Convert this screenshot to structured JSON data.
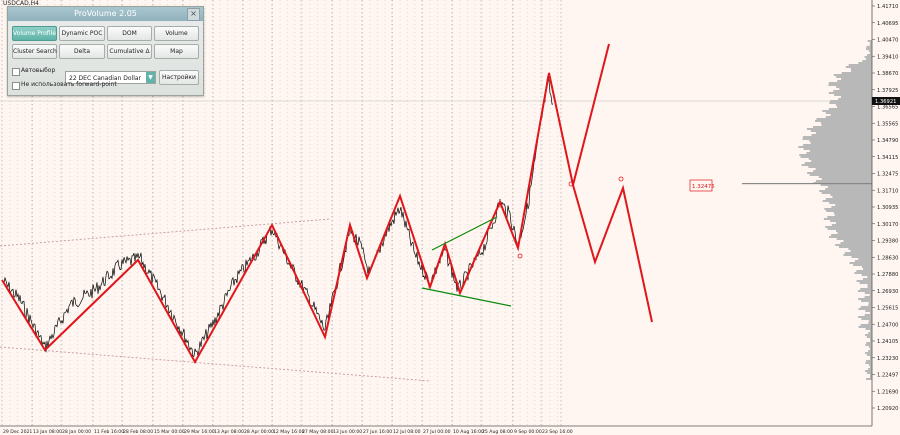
{
  "symbol": "USDCAD,H4",
  "panel": {
    "title": "ProVolume 2.05",
    "close_label": "×",
    "buttons": [
      "Volume Profile",
      "Dynamic POC",
      "DOM",
      "Volume",
      "Cluster Search",
      "Delta",
      "Cumulative Δ",
      "Map"
    ],
    "auto_select_label": "Автовыбор",
    "instrument": "22 DEC Canadian Dollar",
    "settings_label": "Настройки",
    "forward_point_label": "Не использовать forward-point"
  },
  "price_scale": [
    "1.41710",
    "1.40695",
    "1.40470",
    "1.39410",
    "1.38670",
    "1.37925",
    "1.36565",
    "1.35565",
    "1.34790",
    "1.34115",
    "1.32475",
    "1.31710",
    "1.30935",
    "1.30170",
    "1.29380",
    "1.28630",
    "1.27880",
    "1.26930",
    "1.25615",
    "1.24700",
    "1.24105",
    "1.23230",
    "1.22497",
    "1.21690",
    "1.20920"
  ],
  "current_price": "1.36921",
  "time_scale": [
    "29 Dec 2021",
    "13 Jan 08:00",
    "28 Jan 00:00",
    "11 Feb 16:00",
    "28 Feb 08:00",
    "15 Mar 00:00",
    "29 Mar 16:00",
    "13 Apr 08:00",
    "28 Apr 00:00",
    "12 May 16:00",
    "27 May 08:00",
    "13 Jun 00:00",
    "27 Jun 16:00",
    "12 Jul 08:00",
    "27 Jul 00:00",
    "10 Aug 16:00",
    "25 Aug 08:00",
    "9 Sep 00:00",
    "23 Sep 16:00"
  ],
  "level_label": "1.32475",
  "colors": {
    "zigzag": "#e0161b",
    "channel": "#0a8a0a",
    "profile": "#b8b8b8",
    "dashed": "#c39a9a"
  }
}
